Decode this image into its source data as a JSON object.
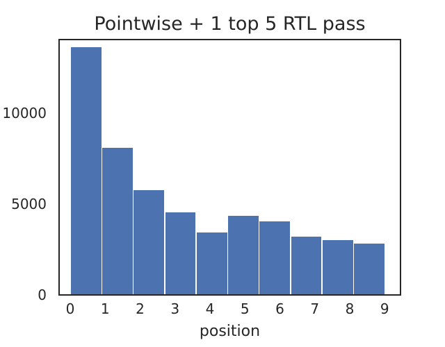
{
  "chart_data": {
    "type": "bar",
    "title": "Pointwise + 1 top 5 RTL pass",
    "xlabel": "position",
    "ylabel": "",
    "categories": [
      "0",
      "1",
      "2",
      "3",
      "4",
      "5",
      "6",
      "7",
      "8",
      "9"
    ],
    "values": [
      13600,
      8060,
      5710,
      4500,
      3390,
      4310,
      4000,
      3160,
      2970,
      2780
    ],
    "yticks": [
      0,
      5000,
      10000
    ],
    "ylim": [
      0,
      14100
    ],
    "bar_color": "#4C72B0",
    "axis_color": "#262626",
    "background_color": "#ffffff",
    "grid": false,
    "legend_position": "none"
  }
}
